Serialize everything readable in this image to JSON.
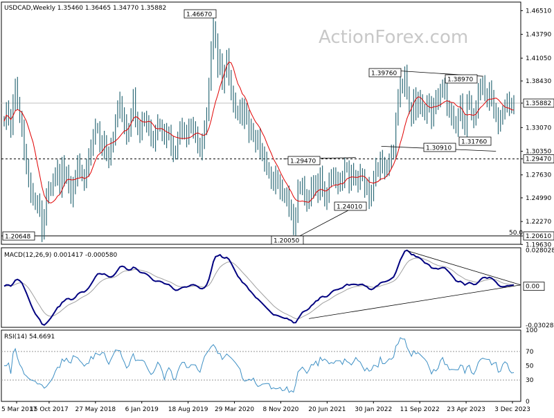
{
  "chart_data": {
    "type": "candlestick",
    "symbol_header": "USDCAD,Weekly  1.35460 1.36465 1.34770 1.35882",
    "watermark": "ActionForex.com",
    "colors": {
      "bars": "#2e6b78",
      "ma": "#e00000",
      "macd": "#000080",
      "signal": "#a0a0a0",
      "rsi": "#3d8fc4",
      "trend": "#000000"
    },
    "x_ticks": [
      "5 Mar 2017",
      "15 Oct 2017",
      "27 May 2018",
      "6 Jan 2019",
      "18 Aug 2019",
      "29 Mar 2020",
      "8 Nov 2020",
      "20 Jun 2021",
      "30 Jan 2022",
      "11 Sep 2022",
      "23 Apr 2023",
      "3 Dec 2023"
    ],
    "price_panel": {
      "ylim": [
        1.1965,
        1.475
      ],
      "y_ticks": [
        "1.46510",
        "1.43790",
        "1.41050",
        "1.38430",
        "1.35882",
        "1.33070",
        "1.30350",
        "1.29470",
        "1.27630",
        "1.24990",
        "1.22270",
        "1.20610",
        "1.19630"
      ],
      "current_price": "1.35882",
      "annotations": [
        {
          "label": "1.46670",
          "date_index": 0.33,
          "value": 1.4667
        },
        {
          "label": "1.39760",
          "date_index": 0.64,
          "value": 1.3976
        },
        {
          "label": "1.38970",
          "date_index": 0.74,
          "value": 1.3897
        },
        {
          "label": "1.29470",
          "date_index": 0.49,
          "value": 1.2947
        },
        {
          "label": "1.30910",
          "date_index": 0.67,
          "value": 1.3091
        },
        {
          "label": "1.31760",
          "date_index": 0.72,
          "value": 1.3176
        },
        {
          "label": "1.24010",
          "date_index": 0.51,
          "value": 1.2401
        },
        {
          "label": "1.20648",
          "date_index": 0.0,
          "value": 1.20648
        },
        {
          "label": "1.20050",
          "date_index": 0.45,
          "value": 1.2005
        },
        {
          "label": "1.20610",
          "value": 1.2061
        },
        {
          "label": "1.29470",
          "value": 1.2947
        },
        {
          "label": "50.0",
          "value": 1.2061
        }
      ],
      "close_series": [
        1.338,
        1.352,
        1.34,
        1.33,
        1.362,
        1.378,
        1.36,
        1.342,
        1.33,
        1.3,
        1.288,
        1.27,
        1.256,
        1.25,
        1.242,
        1.245,
        1.235,
        1.21,
        1.23,
        1.252,
        1.258,
        1.262,
        1.27,
        1.275,
        1.282,
        1.262,
        1.288,
        1.272,
        1.28,
        1.265,
        1.25,
        1.262,
        1.275,
        1.29,
        1.282,
        1.275,
        1.268,
        1.285,
        1.295,
        1.31,
        1.32,
        1.33,
        1.33,
        1.312,
        1.305,
        1.315,
        1.3,
        1.296,
        1.308,
        1.32,
        1.338,
        1.352,
        1.36,
        1.345,
        1.335,
        1.32,
        1.33,
        1.345,
        1.365,
        1.342,
        1.33,
        1.325,
        1.338,
        1.342,
        1.335,
        1.328,
        1.32,
        1.315,
        1.325,
        1.335,
        1.332,
        1.325,
        1.318,
        1.324,
        1.325,
        1.31,
        1.3,
        1.304,
        1.318,
        1.328,
        1.33,
        1.325,
        1.32,
        1.33,
        1.335,
        1.328,
        1.32,
        1.312,
        1.305,
        1.315,
        1.328,
        1.348,
        1.38,
        1.42,
        1.446,
        1.43,
        1.4,
        1.41,
        1.38,
        1.395,
        1.41,
        1.39,
        1.37,
        1.36,
        1.35,
        1.345,
        1.355,
        1.34,
        1.352,
        1.342,
        1.325,
        1.33,
        1.32,
        1.312,
        1.318,
        1.306,
        1.3,
        1.292,
        1.285,
        1.278,
        1.27,
        1.265,
        1.275,
        1.268,
        1.26,
        1.255,
        1.25,
        1.254,
        1.235,
        1.236,
        1.215,
        1.23,
        1.26,
        1.263,
        1.265,
        1.248,
        1.245,
        1.252,
        1.265,
        1.258,
        1.27,
        1.254,
        1.275,
        1.262,
        1.248,
        1.253,
        1.268,
        1.277,
        1.275,
        1.268,
        1.265,
        1.272,
        1.27,
        1.285,
        1.285,
        1.265,
        1.278,
        1.275,
        1.272,
        1.268,
        1.278,
        1.275,
        1.26,
        1.262,
        1.248,
        1.258,
        1.272,
        1.285,
        1.28,
        1.295,
        1.285,
        1.282,
        1.287,
        1.292,
        1.3,
        1.305,
        1.34,
        1.365,
        1.38,
        1.378,
        1.392,
        1.372,
        1.352,
        1.342,
        1.365,
        1.35,
        1.365,
        1.358,
        1.352,
        1.345,
        1.36,
        1.355,
        1.34,
        1.358,
        1.365,
        1.36,
        1.375,
        1.378,
        1.37,
        1.355,
        1.35,
        1.345,
        1.338,
        1.33,
        1.345,
        1.358,
        1.34,
        1.33,
        1.36,
        1.362,
        1.345,
        1.34,
        1.352,
        1.37,
        1.38,
        1.38,
        1.37,
        1.36,
        1.375,
        1.362,
        1.352,
        1.345,
        1.335,
        1.34,
        1.35,
        1.355,
        1.36,
        1.355,
        1.358,
        1.359
      ]
    },
    "macd_panel": {
      "label": "MACD(12,26,9) 0.001417 -0.000580",
      "ylim": [
        -0.032,
        0.03
      ],
      "y_ticks": [
        "0.028028",
        "0.00",
        "-0.030286"
      ],
      "line_label": "0.00"
    },
    "rsi_panel": {
      "label": "RSI(14) 54.6691",
      "ylim": [
        0,
        100
      ],
      "y_ticks": [
        "100",
        "70",
        "50",
        "30",
        "0"
      ]
    }
  }
}
